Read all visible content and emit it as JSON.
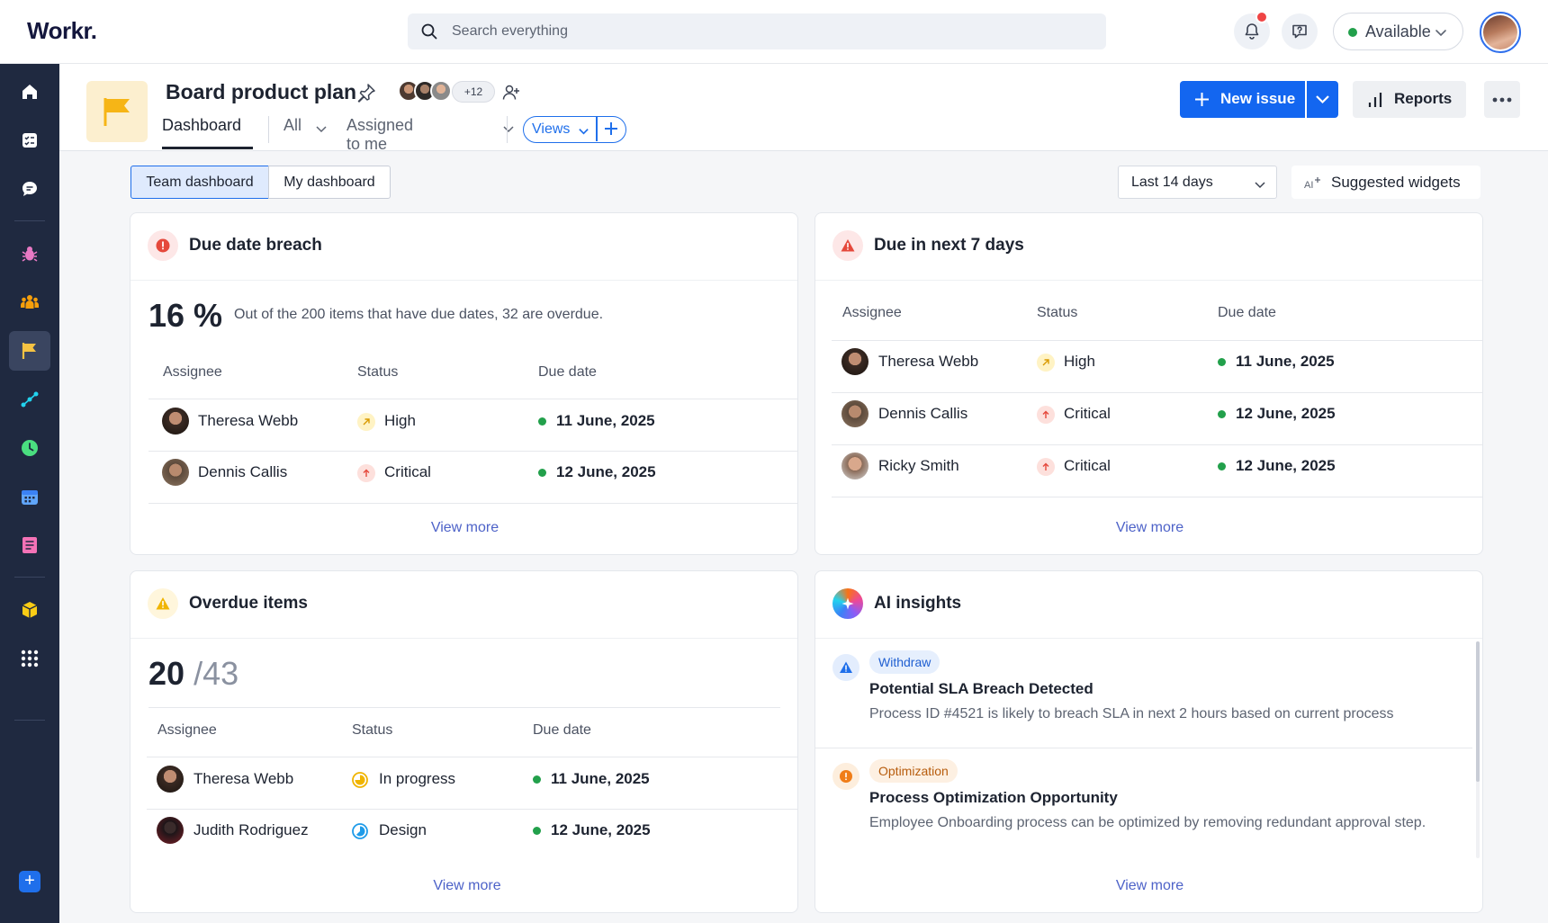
{
  "app": {
    "logo": "Workr."
  },
  "search": {
    "placeholder": "Search everything"
  },
  "topbar": {
    "status_label": "Available",
    "status_color": "#22a04b"
  },
  "sidebar": {
    "items": [
      "home-icon",
      "checklist-icon",
      "chat-icon",
      "bug-icon",
      "team-icon",
      "flag-icon",
      "workflow-icon",
      "clock-icon",
      "calendar-icon",
      "document-icon",
      "package-icon",
      "apps-grid-icon"
    ],
    "active": "flag-icon"
  },
  "project": {
    "title": "Board product plan",
    "members_extra": "+12",
    "tabs": [
      "Dashboard",
      "All",
      "Assigned to me"
    ],
    "views_label": "Views",
    "new_issue_label": "New issue",
    "reports_label": "Reports"
  },
  "dashboard_switch": {
    "team": "Team dashboard",
    "mine": "My dashboard",
    "active": "team"
  },
  "filters": {
    "date_range": "Last 14 days",
    "suggested_label": "Suggested widgets"
  },
  "columns": {
    "assignee": "Assignee",
    "status": "Status",
    "due": "Due date"
  },
  "cards": {
    "breach": {
      "title": "Due date breach",
      "big_value": "16 %",
      "description": "Out of the 200 items that have due dates, 32 are overdue.",
      "rows": [
        {
          "name": "Theresa Webb",
          "status": "High",
          "due": "11 June, 2025"
        },
        {
          "name": "Dennis Callis",
          "status": "Critical",
          "due": "12 June, 2025"
        }
      ],
      "view_more": "View more"
    },
    "next7": {
      "title": "Due in next 7 days",
      "rows": [
        {
          "name": "Theresa Webb",
          "status": "High",
          "due": "11 June, 2025"
        },
        {
          "name": "Dennis Callis",
          "status": "Critical",
          "due": "12 June, 2025"
        },
        {
          "name": "Ricky Smith",
          "status": "Critical",
          "due": "12 June, 2025"
        }
      ],
      "view_more": "View more"
    },
    "overdue": {
      "title": "Overdue items",
      "count": "20",
      "total": "/43",
      "rows": [
        {
          "name": "Theresa Webb",
          "status": "In progress",
          "due": "11 June, 2025"
        },
        {
          "name": "Judith Rodriguez",
          "status": "Design",
          "due": "12 June, 2025"
        }
      ],
      "view_more": "View more"
    },
    "ai": {
      "title": "AI insights",
      "items": [
        {
          "tag": "Withdraw",
          "title": "Potential SLA Breach Detected",
          "desc": "Process ID #4521 is likely to breach SLA in next 2 hours based on current process"
        },
        {
          "tag": "Optimization",
          "title": "Process Optimization Opportunity",
          "desc": "Employee Onboarding process can be optimized by removing redundant approval step."
        }
      ],
      "view_more": "View more"
    }
  },
  "colors": {
    "primary": "#1366f0",
    "sidebar": "#1f2940",
    "high": "#f0b400",
    "critical": "#e5483b",
    "due_dot": "#22a04b"
  }
}
